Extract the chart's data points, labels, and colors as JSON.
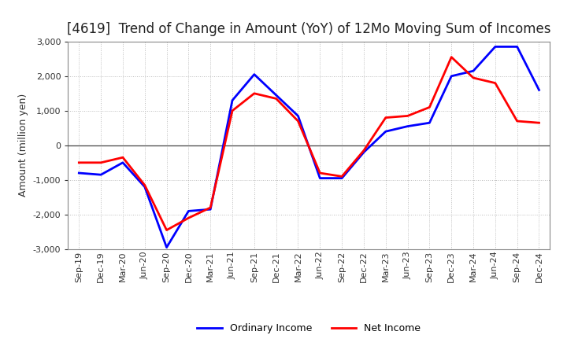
{
  "title": "[4619]  Trend of Change in Amount (YoY) of 12Mo Moving Sum of Incomes",
  "ylabel": "Amount (million yen)",
  "ylim": [
    -3000,
    3000
  ],
  "yticks": [
    -3000,
    -2000,
    -1000,
    0,
    1000,
    2000,
    3000
  ],
  "x_labels": [
    "Sep-19",
    "Dec-19",
    "Mar-20",
    "Jun-20",
    "Sep-20",
    "Dec-20",
    "Mar-21",
    "Jun-21",
    "Sep-21",
    "Dec-21",
    "Mar-22",
    "Jun-22",
    "Sep-22",
    "Dec-22",
    "Mar-23",
    "Jun-23",
    "Sep-23",
    "Dec-23",
    "Mar-24",
    "Jun-24",
    "Sep-24",
    "Dec-24"
  ],
  "ordinary_income": [
    -800,
    -850,
    -500,
    -1200,
    -2950,
    -1900,
    -1850,
    1300,
    2050,
    1450,
    850,
    -950,
    -950,
    -200,
    400,
    550,
    650,
    2000,
    2150,
    2850,
    2850,
    1600
  ],
  "net_income": [
    -500,
    -500,
    -350,
    -1150,
    -2450,
    -2100,
    -1800,
    1000,
    1500,
    1350,
    700,
    -800,
    -900,
    -150,
    800,
    850,
    1100,
    2550,
    1950,
    1800,
    700,
    650
  ],
  "ordinary_color": "#0000FF",
  "net_color": "#FF0000",
  "line_width": 2.0,
  "background_color": "#FFFFFF",
  "plot_bg_color": "#FFFFFF",
  "grid_color": "#BBBBBB",
  "title_fontsize": 12,
  "axis_label_fontsize": 9,
  "tick_fontsize": 8,
  "legend_fontsize": 9
}
